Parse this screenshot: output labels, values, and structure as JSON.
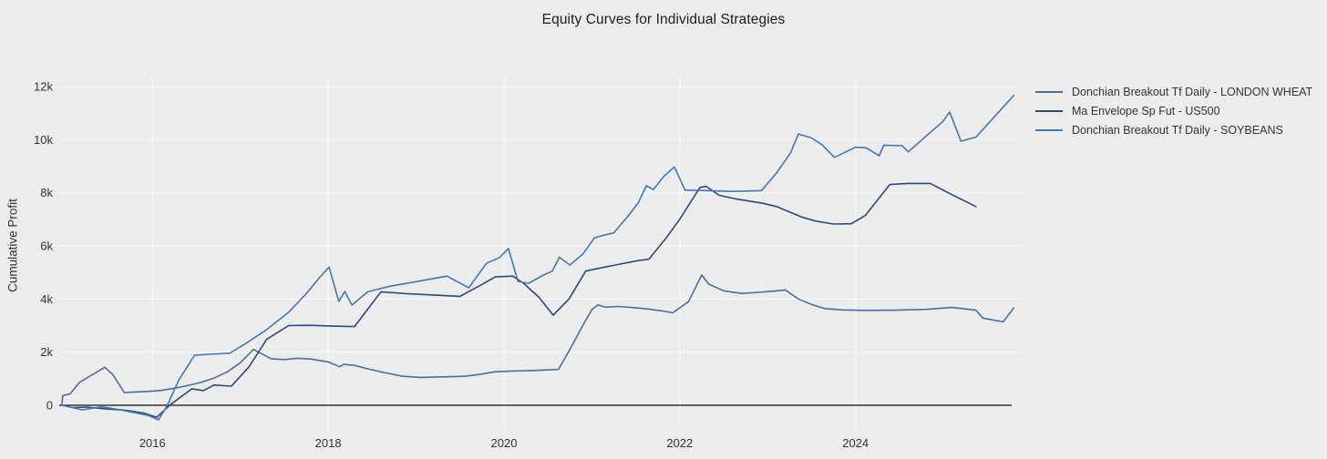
{
  "page": {
    "background_color": "#ececec",
    "text_color": "#333333"
  },
  "chart_data": {
    "type": "line",
    "title": "Equity Curves for Individual Strategies",
    "xlabel": "",
    "ylabel": "Cumulative Profit",
    "grid": true,
    "grid_color": "#f8f8f8",
    "zero_line": true,
    "zero_line_color": "#333333",
    "legend_position": "top-right",
    "x_range": [
      2014.94,
      2025.88
    ],
    "y_range": [
      -960,
      12340
    ],
    "x_tick_values": [
      2016,
      2018,
      2020,
      2022,
      2024
    ],
    "x_tick_labels": [
      "2016",
      "2018",
      "2020",
      "2022",
      "2024"
    ],
    "y_tick_values": [
      0,
      2000,
      4000,
      6000,
      8000,
      10000,
      12000
    ],
    "y_tick_labels": [
      "0",
      "2k",
      "4k",
      "6k",
      "8k",
      "10k",
      "12k"
    ],
    "series": [
      {
        "name": "Donchian Breakout Tf Daily - LONDON WHEAT",
        "color": "#4e6d9b",
        "points": [
          [
            2014.97,
            30
          ],
          [
            2014.98,
            370
          ],
          [
            2015.06,
            420
          ],
          [
            2015.17,
            860
          ],
          [
            2015.3,
            1120
          ],
          [
            2015.46,
            1430
          ],
          [
            2015.55,
            1150
          ],
          [
            2015.68,
            480
          ],
          [
            2015.8,
            500
          ],
          [
            2015.95,
            520
          ],
          [
            2016.1,
            560
          ],
          [
            2016.25,
            640
          ],
          [
            2016.4,
            740
          ],
          [
            2016.55,
            860
          ],
          [
            2016.7,
            1020
          ],
          [
            2016.85,
            1250
          ],
          [
            2017.0,
            1600
          ],
          [
            2017.15,
            2100
          ],
          [
            2017.35,
            1750
          ],
          [
            2017.5,
            1720
          ],
          [
            2017.65,
            1770
          ],
          [
            2017.8,
            1740
          ],
          [
            2018.0,
            1630
          ],
          [
            2018.13,
            1450
          ],
          [
            2018.18,
            1540
          ],
          [
            2018.3,
            1500
          ],
          [
            2018.45,
            1370
          ],
          [
            2018.65,
            1220
          ],
          [
            2018.85,
            1090
          ],
          [
            2019.05,
            1050
          ],
          [
            2019.3,
            1070
          ],
          [
            2019.55,
            1090
          ],
          [
            2019.72,
            1160
          ],
          [
            2019.9,
            1260
          ],
          [
            2020.1,
            1290
          ],
          [
            2020.35,
            1310
          ],
          [
            2020.62,
            1350
          ],
          [
            2020.75,
            2100
          ],
          [
            2020.88,
            2900
          ],
          [
            2021.0,
            3600
          ],
          [
            2021.07,
            3780
          ],
          [
            2021.15,
            3690
          ],
          [
            2021.3,
            3720
          ],
          [
            2021.5,
            3670
          ],
          [
            2021.65,
            3620
          ],
          [
            2021.8,
            3550
          ],
          [
            2021.92,
            3480
          ],
          [
            2022.1,
            3900
          ],
          [
            2022.25,
            4900
          ],
          [
            2022.33,
            4560
          ],
          [
            2022.5,
            4310
          ],
          [
            2022.7,
            4210
          ],
          [
            2022.9,
            4250
          ],
          [
            2023.05,
            4290
          ],
          [
            2023.2,
            4340
          ],
          [
            2023.35,
            4000
          ],
          [
            2023.5,
            3790
          ],
          [
            2023.65,
            3640
          ],
          [
            2023.85,
            3590
          ],
          [
            2024.1,
            3570
          ],
          [
            2024.45,
            3580
          ],
          [
            2024.8,
            3610
          ],
          [
            2025.1,
            3680
          ],
          [
            2025.37,
            3580
          ],
          [
            2025.45,
            3280
          ],
          [
            2025.68,
            3140
          ],
          [
            2025.8,
            3660
          ]
        ]
      },
      {
        "name": "Ma Envelope Sp Fut - US500",
        "color": "#2b4a77",
        "points": [
          [
            2014.97,
            0
          ],
          [
            2015.1,
            -90
          ],
          [
            2015.25,
            -70
          ],
          [
            2015.45,
            -130
          ],
          [
            2015.7,
            -190
          ],
          [
            2015.9,
            -290
          ],
          [
            2016.05,
            -450
          ],
          [
            2016.2,
            10
          ],
          [
            2016.45,
            620
          ],
          [
            2016.58,
            550
          ],
          [
            2016.7,
            760
          ],
          [
            2016.9,
            720
          ],
          [
            2017.1,
            1450
          ],
          [
            2017.3,
            2480
          ],
          [
            2017.55,
            3000
          ],
          [
            2017.8,
            3010
          ],
          [
            2018.05,
            2980
          ],
          [
            2018.3,
            2960
          ],
          [
            2018.6,
            4270
          ],
          [
            2018.9,
            4200
          ],
          [
            2019.2,
            4150
          ],
          [
            2019.5,
            4100
          ],
          [
            2019.75,
            4550
          ],
          [
            2019.9,
            4830
          ],
          [
            2020.1,
            4860
          ],
          [
            2020.22,
            4600
          ],
          [
            2020.4,
            4060
          ],
          [
            2020.56,
            3390
          ],
          [
            2020.74,
            4000
          ],
          [
            2020.93,
            5050
          ],
          [
            2021.1,
            5170
          ],
          [
            2021.3,
            5300
          ],
          [
            2021.5,
            5430
          ],
          [
            2021.65,
            5500
          ],
          [
            2021.85,
            6320
          ],
          [
            2022.0,
            7000
          ],
          [
            2022.23,
            8200
          ],
          [
            2022.3,
            8240
          ],
          [
            2022.45,
            7900
          ],
          [
            2022.65,
            7760
          ],
          [
            2022.95,
            7600
          ],
          [
            2023.1,
            7480
          ],
          [
            2023.4,
            7070
          ],
          [
            2023.55,
            6930
          ],
          [
            2023.75,
            6820
          ],
          [
            2023.95,
            6830
          ],
          [
            2024.11,
            7140
          ],
          [
            2024.39,
            8310
          ],
          [
            2024.6,
            8350
          ],
          [
            2024.85,
            8350
          ],
          [
            2025.1,
            7920
          ],
          [
            2025.37,
            7480
          ]
        ]
      },
      {
        "name": "Donchian Breakout Tf Daily - SOYBEANS",
        "color": "#4377ad",
        "points": [
          [
            2014.97,
            0
          ],
          [
            2015.2,
            -170
          ],
          [
            2015.42,
            -60
          ],
          [
            2015.6,
            -150
          ],
          [
            2015.8,
            -280
          ],
          [
            2015.95,
            -380
          ],
          [
            2016.07,
            -550
          ],
          [
            2016.17,
            0
          ],
          [
            2016.3,
            950
          ],
          [
            2016.48,
            1880
          ],
          [
            2016.65,
            1920
          ],
          [
            2016.88,
            1960
          ],
          [
            2017.05,
            2300
          ],
          [
            2017.3,
            2850
          ],
          [
            2017.55,
            3500
          ],
          [
            2017.75,
            4200
          ],
          [
            2017.9,
            4800
          ],
          [
            2018.01,
            5200
          ],
          [
            2018.12,
            3910
          ],
          [
            2018.19,
            4280
          ],
          [
            2018.27,
            3770
          ],
          [
            2018.45,
            4270
          ],
          [
            2018.7,
            4480
          ],
          [
            2019.0,
            4650
          ],
          [
            2019.35,
            4860
          ],
          [
            2019.6,
            4420
          ],
          [
            2019.8,
            5340
          ],
          [
            2019.95,
            5560
          ],
          [
            2020.05,
            5900
          ],
          [
            2020.16,
            4660
          ],
          [
            2020.28,
            4590
          ],
          [
            2020.45,
            4900
          ],
          [
            2020.55,
            5050
          ],
          [
            2020.63,
            5570
          ],
          [
            2020.75,
            5280
          ],
          [
            2020.9,
            5700
          ],
          [
            2021.03,
            6300
          ],
          [
            2021.12,
            6390
          ],
          [
            2021.25,
            6490
          ],
          [
            2021.42,
            7150
          ],
          [
            2021.53,
            7630
          ],
          [
            2021.62,
            8260
          ],
          [
            2021.7,
            8120
          ],
          [
            2021.82,
            8620
          ],
          [
            2021.94,
            8970
          ],
          [
            2022.06,
            8100
          ],
          [
            2022.3,
            8080
          ],
          [
            2022.6,
            8050
          ],
          [
            2022.93,
            8080
          ],
          [
            2023.1,
            8740
          ],
          [
            2023.26,
            9490
          ],
          [
            2023.35,
            10210
          ],
          [
            2023.5,
            10060
          ],
          [
            2023.62,
            9800
          ],
          [
            2023.76,
            9330
          ],
          [
            2024.0,
            9710
          ],
          [
            2024.12,
            9690
          ],
          [
            2024.27,
            9390
          ],
          [
            2024.32,
            9790
          ],
          [
            2024.53,
            9770
          ],
          [
            2024.6,
            9540
          ],
          [
            2024.82,
            10180
          ],
          [
            2025.0,
            10700
          ],
          [
            2025.07,
            11040
          ],
          [
            2025.2,
            9940
          ],
          [
            2025.37,
            10090
          ],
          [
            2025.8,
            11660
          ]
        ]
      }
    ]
  }
}
